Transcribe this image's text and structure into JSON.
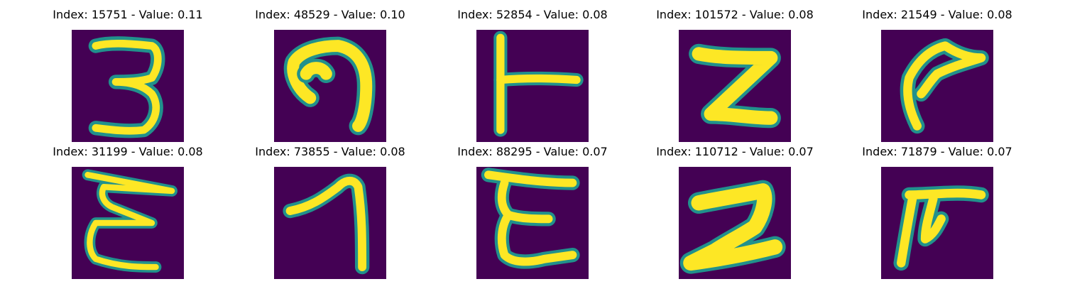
{
  "colors": {
    "background": "#440154",
    "mid": "#21918c",
    "mid_light": "#5ec962",
    "stroke": "#fde725"
  },
  "items": [
    {
      "title": "Index: 15751 - Value: 0.11",
      "glyph": "3"
    },
    {
      "title": "Index: 48529 - Value: 0.10",
      "glyph": "hook-open"
    },
    {
      "title": "Index: 52854 - Value: 0.08",
      "glyph": "T-rotated"
    },
    {
      "title": "Index: 101572 - Value: 0.08",
      "glyph": "Z-bold"
    },
    {
      "title": "Index: 21549 - Value: 0.08",
      "glyph": "swoosh"
    },
    {
      "title": "Index: 31199 - Value: 0.08",
      "glyph": "E-zigzag"
    },
    {
      "title": "Index: 73855 - Value: 0.08",
      "glyph": "7-like"
    },
    {
      "title": "Index: 88295 - Value: 0.07",
      "glyph": "E-curvy"
    },
    {
      "title": "Index: 110712 - Value: 0.07",
      "glyph": "2-bold"
    },
    {
      "title": "Index: 71879 - Value: 0.07",
      "glyph": "pi-like"
    }
  ]
}
